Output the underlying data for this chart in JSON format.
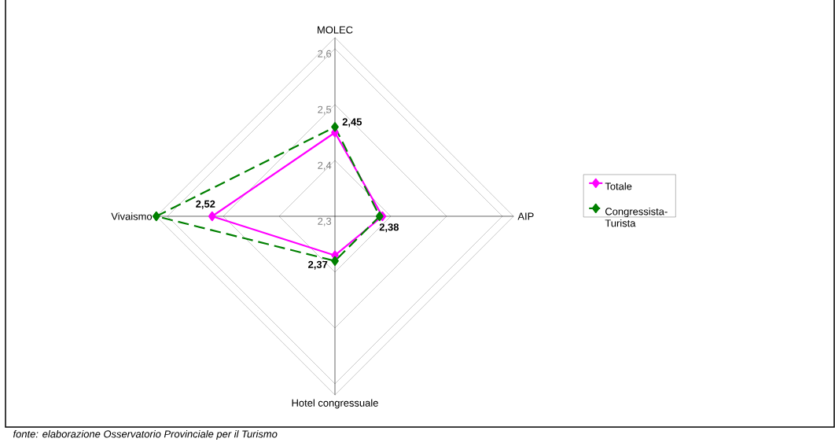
{
  "chart_data": {
    "type": "radar",
    "categories": [
      "MOLEC",
      "AIP",
      "Hotel congressuale",
      "Vivaismo"
    ],
    "series": [
      {
        "name": "Totale",
        "color": "#ff00ff",
        "line_style": "solid",
        "values": [
          2.45,
          2.385,
          2.37,
          2.52
        ],
        "value_labels": [
          "2,45",
          "2,38",
          "2,37",
          "2,52"
        ]
      },
      {
        "name": "Congressista-Turista",
        "color": "#008000",
        "line_style": "dashed",
        "values": [
          2.46,
          2.38,
          2.38,
          2.62
        ]
      }
    ],
    "ylim": [
      2.3,
      2.62
    ],
    "yticks": [
      {
        "value": 2.3,
        "label": "2,3"
      },
      {
        "value": 2.4,
        "label": "2,4"
      },
      {
        "value": 2.5,
        "label": "2,5"
      },
      {
        "value": 2.6,
        "label": "2,6"
      }
    ],
    "grid": true,
    "legend": "right",
    "marker": "diamond",
    "annotations": [
      "fonte: elaborazione Osservatorio Provinciale per il Turismo"
    ]
  }
}
